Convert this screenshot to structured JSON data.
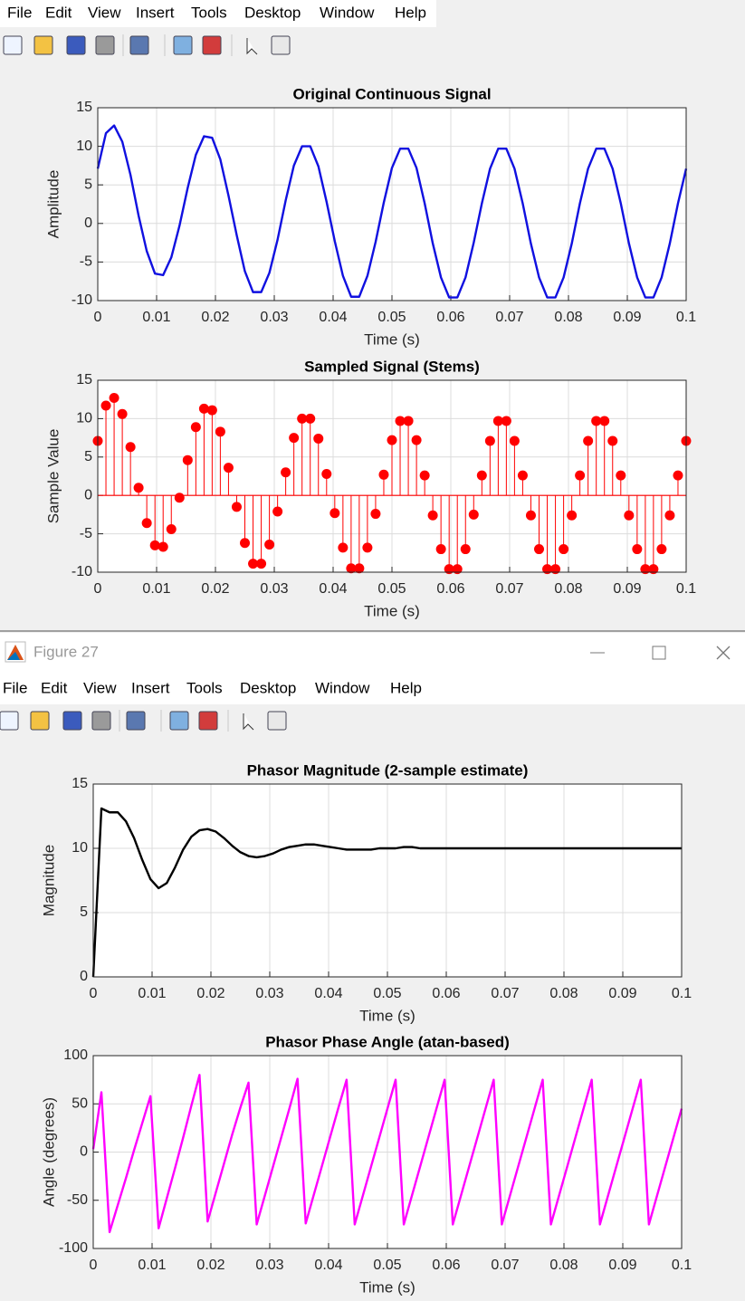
{
  "menu_bars": [
    [
      "File",
      "Edit",
      "View",
      "Insert",
      "Tools",
      "Desktop",
      "Window",
      "Help"
    ],
    [
      "File",
      "Edit",
      "View",
      "Insert",
      "Tools",
      "Desktop",
      "Window",
      "Help"
    ]
  ],
  "window_title": "Figure 27",
  "chart_data": [
    {
      "type": "line",
      "title": "Original Continuous Signal",
      "x_label": "Time (s)",
      "y_label": "Amplitude",
      "grid": true,
      "xlim": [
        0,
        0.1
      ],
      "xticks": [
        0,
        0.01,
        0.02,
        0.03,
        0.04,
        0.05,
        0.06,
        0.07,
        0.08,
        0.09,
        0.1
      ],
      "ylim": [
        -10,
        15
      ],
      "yticks": [
        -10,
        -5,
        0,
        5,
        10,
        15
      ],
      "x": [
        0,
        0.00139,
        0.00278,
        0.00417,
        0.00556,
        0.00694,
        0.00833,
        0.00972,
        0.01111,
        0.0125,
        0.01389,
        0.01528,
        0.01667,
        0.01806,
        0.01944,
        0.02083,
        0.02222,
        0.02361,
        0.025,
        0.02639,
        0.02778,
        0.02917,
        0.03056,
        0.03194,
        0.03333,
        0.03472,
        0.03611,
        0.0375,
        0.03889,
        0.04028,
        0.04167,
        0.04306,
        0.04444,
        0.04583,
        0.04722,
        0.04861,
        0.05,
        0.05139,
        0.05278,
        0.05417,
        0.05556,
        0.05694,
        0.05833,
        0.05972,
        0.06111,
        0.0625,
        0.06389,
        0.06528,
        0.06667,
        0.06806,
        0.06944,
        0.07083,
        0.07222,
        0.07361,
        0.075,
        0.07639,
        0.07778,
        0.07917,
        0.08056,
        0.08194,
        0.08333,
        0.08472,
        0.08611,
        0.0875,
        0.08889,
        0.09028,
        0.09167,
        0.09306,
        0.09444,
        0.09583,
        0.09722,
        0.09861,
        0.1
      ],
      "series": [
        {
          "color": "#1010e0",
          "values": [
            7.1,
            11.7,
            12.7,
            10.6,
            6.3,
            1.0,
            -3.6,
            -6.5,
            -6.7,
            -4.4,
            -0.3,
            4.6,
            8.9,
            11.3,
            11.1,
            8.3,
            3.6,
            -1.5,
            -6.2,
            -8.9,
            -8.9,
            -6.4,
            -2.1,
            3.0,
            7.5,
            10.0,
            10.0,
            7.4,
            2.8,
            -2.3,
            -6.8,
            -9.5,
            -9.5,
            -6.8,
            -2.4,
            2.7,
            7.2,
            9.7,
            9.7,
            7.2,
            2.6,
            -2.6,
            -7.0,
            -9.6,
            -9.6,
            -7.0,
            -2.5,
            2.6,
            7.1,
            9.7,
            9.7,
            7.1,
            2.6,
            -2.6,
            -7.0,
            -9.6,
            -9.6,
            -7.0,
            -2.6,
            2.6,
            7.1,
            9.7,
            9.7,
            7.1,
            2.6,
            -2.6,
            -7.0,
            -9.6,
            -9.6,
            -7.0,
            -2.6,
            2.6,
            7.1
          ]
        }
      ]
    },
    {
      "type": "stem",
      "title": "Sampled Signal (Stems)",
      "x_label": "Time (s)",
      "y_label": "Sample Value",
      "grid": true,
      "xlim": [
        0,
        0.1
      ],
      "xticks": [
        0,
        0.01,
        0.02,
        0.03,
        0.04,
        0.05,
        0.06,
        0.07,
        0.08,
        0.09,
        0.1
      ],
      "ylim": [
        -10,
        15
      ],
      "yticks": [
        -10,
        -5,
        0,
        5,
        10,
        15
      ],
      "x": [
        0,
        0.00139,
        0.00278,
        0.00417,
        0.00556,
        0.00694,
        0.00833,
        0.00972,
        0.01111,
        0.0125,
        0.01389,
        0.01528,
        0.01667,
        0.01806,
        0.01944,
        0.02083,
        0.02222,
        0.02361,
        0.025,
        0.02639,
        0.02778,
        0.02917,
        0.03056,
        0.03194,
        0.03333,
        0.03472,
        0.03611,
        0.0375,
        0.03889,
        0.04028,
        0.04167,
        0.04306,
        0.04444,
        0.04583,
        0.04722,
        0.04861,
        0.05,
        0.05139,
        0.05278,
        0.05417,
        0.05556,
        0.05694,
        0.05833,
        0.05972,
        0.06111,
        0.0625,
        0.06389,
        0.06528,
        0.06667,
        0.06806,
        0.06944,
        0.07083,
        0.07222,
        0.07361,
        0.075,
        0.07639,
        0.07778,
        0.07917,
        0.08056,
        0.08194,
        0.08333,
        0.08472,
        0.08611,
        0.0875,
        0.08889,
        0.09028,
        0.09167,
        0.09306,
        0.09444,
        0.09583,
        0.09722,
        0.09861,
        0.1
      ],
      "series": [
        {
          "color": "#ff0000",
          "values": [
            7.1,
            11.7,
            12.7,
            10.6,
            6.3,
            1.0,
            -3.6,
            -6.5,
            -6.7,
            -4.4,
            -0.3,
            4.6,
            8.9,
            11.3,
            11.1,
            8.3,
            3.6,
            -1.5,
            -6.2,
            -8.9,
            -8.9,
            -6.4,
            -2.1,
            3.0,
            7.5,
            10.0,
            10.0,
            7.4,
            2.8,
            -2.3,
            -6.8,
            -9.5,
            -9.5,
            -6.8,
            -2.4,
            2.7,
            7.2,
            9.7,
            9.7,
            7.2,
            2.6,
            -2.6,
            -7.0,
            -9.6,
            -9.6,
            -7.0,
            -2.5,
            2.6,
            7.1,
            9.7,
            9.7,
            7.1,
            2.6,
            -2.6,
            -7.0,
            -9.6,
            -9.6,
            -7.0,
            -2.6,
            2.6,
            7.1,
            9.7,
            9.7,
            7.1,
            2.6,
            -2.6,
            -7.0,
            -9.6,
            -9.6,
            -7.0,
            -2.6,
            2.6,
            7.1
          ]
        }
      ]
    },
    {
      "type": "line",
      "title": "Phasor Magnitude (2-sample estimate)",
      "x_label": "Time (s)",
      "y_label": "Magnitude",
      "grid": true,
      "xlim": [
        0,
        0.1
      ],
      "xticks": [
        0,
        0.01,
        0.02,
        0.03,
        0.04,
        0.05,
        0.06,
        0.07,
        0.08,
        0.09,
        0.1
      ],
      "ylim": [
        0,
        15
      ],
      "yticks": [
        0,
        5,
        10,
        15
      ],
      "x": [
        0,
        0.00139,
        0.00278,
        0.00417,
        0.00556,
        0.00694,
        0.00833,
        0.00972,
        0.01111,
        0.0125,
        0.01389,
        0.01528,
        0.01667,
        0.01806,
        0.01944,
        0.02083,
        0.02222,
        0.02361,
        0.025,
        0.02639,
        0.02778,
        0.02917,
        0.03056,
        0.03194,
        0.03333,
        0.03472,
        0.03611,
        0.0375,
        0.03889,
        0.04028,
        0.04167,
        0.04306,
        0.04444,
        0.04583,
        0.04722,
        0.04861,
        0.05,
        0.05139,
        0.05278,
        0.05417,
        0.05556,
        0.05694,
        0.05833,
        0.05972,
        0.06111,
        0.0625,
        0.06389,
        0.06528,
        0.06667,
        0.06806,
        0.06944,
        0.07083,
        0.07222,
        0.07361,
        0.075,
        0.07639,
        0.07778,
        0.07917,
        0.08056,
        0.08194,
        0.08333,
        0.08472,
        0.08611,
        0.0875,
        0.08889,
        0.09028,
        0.09167,
        0.09306,
        0.09444,
        0.09583,
        0.09722,
        0.09861,
        0.1
      ],
      "series": [
        {
          "color": "#000000",
          "values": [
            0,
            13.1,
            12.8,
            12.8,
            12.1,
            10.8,
            9.1,
            7.6,
            6.9,
            7.3,
            8.5,
            9.9,
            10.9,
            11.4,
            11.5,
            11.3,
            10.8,
            10.2,
            9.7,
            9.4,
            9.3,
            9.4,
            9.6,
            9.9,
            10.1,
            10.2,
            10.3,
            10.3,
            10.2,
            10.1,
            10.0,
            9.9,
            9.9,
            9.9,
            9.9,
            10.0,
            10.0,
            10.0,
            10.1,
            10.1,
            10.0,
            10.0,
            10.0,
            10.0,
            10.0,
            10.0,
            10.0,
            10.0,
            10.0,
            10.0,
            10.0,
            10.0,
            10.0,
            10.0,
            10.0,
            10.0,
            10.0,
            10.0,
            10.0,
            10.0,
            10.0,
            10.0,
            10.0,
            10.0,
            10.0,
            10.0,
            10.0,
            10.0,
            10.0,
            10.0,
            10.0,
            10.0,
            10.0
          ]
        }
      ]
    },
    {
      "type": "line",
      "title": "Phasor Phase Angle (atan-based)",
      "x_label": "Time (s)",
      "y_label": "Angle (degrees)",
      "grid": true,
      "xlim": [
        0,
        0.1
      ],
      "xticks": [
        0,
        0.01,
        0.02,
        0.03,
        0.04,
        0.05,
        0.06,
        0.07,
        0.08,
        0.09,
        0.1
      ],
      "ylim": [
        -100,
        100
      ],
      "yticks": [
        -100,
        -50,
        0,
        50,
        100
      ],
      "x": [
        0,
        0.00139,
        0.00278,
        0.00417,
        0.00556,
        0.00694,
        0.00833,
        0.00972,
        0.01111,
        0.0125,
        0.01389,
        0.01528,
        0.01667,
        0.01806,
        0.01944,
        0.02083,
        0.02222,
        0.02361,
        0.025,
        0.02639,
        0.02778,
        0.02917,
        0.03056,
        0.03194,
        0.03333,
        0.03472,
        0.03611,
        0.0375,
        0.03889,
        0.04028,
        0.04167,
        0.04306,
        0.04444,
        0.04583,
        0.04722,
        0.04861,
        0.05,
        0.05139,
        0.05278,
        0.05417,
        0.05556,
        0.05694,
        0.05833,
        0.05972,
        0.06111,
        0.0625,
        0.06389,
        0.06528,
        0.06667,
        0.06806,
        0.06944,
        0.07083,
        0.07222,
        0.07361,
        0.075,
        0.07639,
        0.07778,
        0.07917,
        0.08056,
        0.08194,
        0.08333,
        0.08472,
        0.08611,
        0.0875,
        0.08889,
        0.09028,
        0.09167,
        0.09306,
        0.09444,
        0.09583,
        0.09722,
        0.09861,
        0.1
      ],
      "series": [
        {
          "color": "#ff00ff",
          "values": [
            3,
            62,
            -83,
            -55,
            -27,
            2,
            30,
            58,
            -79,
            -48,
            -17,
            15,
            48,
            80,
            -72,
            -42,
            -12,
            18,
            46,
            72,
            -75,
            -45,
            -15,
            15,
            45,
            76,
            -74,
            -44,
            -14,
            16,
            46,
            75,
            -75,
            -45,
            -15,
            15,
            45,
            75,
            -75,
            -45,
            -15,
            15,
            45,
            75,
            -75,
            -45,
            -15,
            15,
            45,
            75,
            -75,
            -45,
            -15,
            15,
            45,
            75,
            -75,
            -45,
            -15,
            15,
            45,
            75,
            -75,
            -45,
            -15,
            15,
            45,
            75,
            -75,
            -45,
            -15,
            15,
            45
          ]
        }
      ]
    }
  ]
}
